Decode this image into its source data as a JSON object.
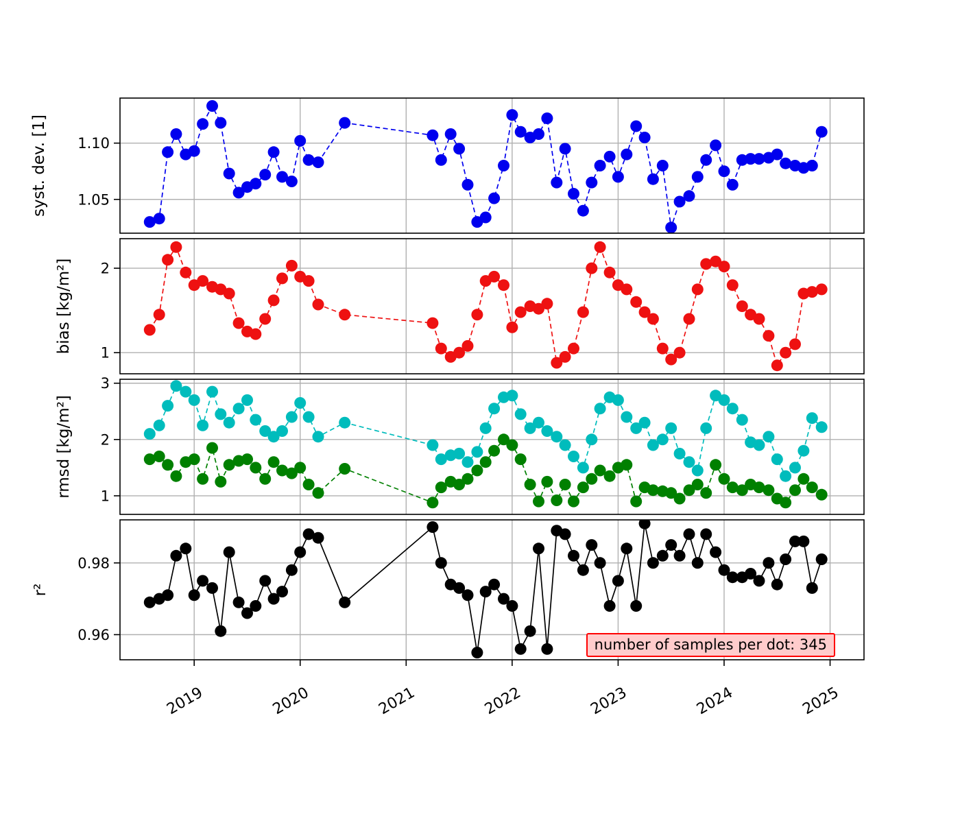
{
  "chart_data": {
    "type": "line",
    "title": "",
    "xlabel": "",
    "grid": true,
    "legend": "none",
    "xlim": [
      2018.3,
      2025.32
    ],
    "x_ticks": [
      2019,
      2020,
      2021,
      2022,
      2023,
      2024,
      2025
    ],
    "x_tick_labels": [
      "2019",
      "2020",
      "2021",
      "2022",
      "2023",
      "2024",
      "2025"
    ],
    "annotation": {
      "text": "number of samples per dot: 345",
      "background": "#ffcccc",
      "border_color": "#ff0000"
    },
    "x": [
      2018.58,
      2018.67,
      2018.75,
      2018.83,
      2018.92,
      2019.0,
      2019.08,
      2019.17,
      2019.25,
      2019.33,
      2019.42,
      2019.5,
      2019.58,
      2019.67,
      2019.75,
      2019.83,
      2019.92,
      2020.0,
      2020.08,
      2020.17,
      2020.42,
      2021.25,
      2021.33,
      2021.42,
      2021.5,
      2021.58,
      2021.67,
      2021.75,
      2021.83,
      2021.92,
      2022.0,
      2022.08,
      2022.17,
      2022.25,
      2022.33,
      2022.42,
      2022.5,
      2022.58,
      2022.67,
      2022.75,
      2022.83,
      2022.92,
      2023.0,
      2023.08,
      2023.17,
      2023.25,
      2023.33,
      2023.42,
      2023.5,
      2023.58,
      2023.67,
      2023.75,
      2023.83,
      2023.92,
      2024.0,
      2024.08,
      2024.17,
      2024.25,
      2024.33,
      2024.42,
      2024.5,
      2024.58,
      2024.67,
      2024.75,
      2024.83,
      2024.92
    ],
    "panels": [
      {
        "id": "syst-dev",
        "ylabel": "syst. dev. [1]",
        "yticks": [
          1.05,
          1.1
        ],
        "ytick_labels": [
          "1.05",
          "1.10"
        ],
        "ylim": [
          1.02,
          1.14
        ],
        "series": [
          {
            "name": "syst-dev",
            "color": "#0000ee",
            "linestyle": "dashed",
            "marker": "o",
            "values": [
              1.03,
              1.033,
              1.092,
              1.108,
              1.09,
              1.093,
              1.117,
              1.133,
              1.118,
              1.073,
              1.056,
              1.061,
              1.064,
              1.072,
              1.092,
              1.07,
              1.066,
              1.102,
              1.085,
              1.083,
              1.118,
              1.107,
              1.085,
              1.108,
              1.095,
              1.063,
              1.03,
              1.034,
              1.051,
              1.08,
              1.125,
              1.11,
              1.105,
              1.108,
              1.122,
              1.065,
              1.095,
              1.055,
              1.04,
              1.065,
              1.08,
              1.088,
              1.07,
              1.09,
              1.115,
              1.105,
              1.068,
              1.08,
              1.025,
              1.048,
              1.053,
              1.07,
              1.085,
              1.098,
              1.075,
              1.063,
              1.085,
              1.086,
              1.086,
              1.087,
              1.09,
              1.082,
              1.08,
              1.078,
              1.08,
              1.11
            ]
          }
        ]
      },
      {
        "id": "bias",
        "ylabel": "bias [kg/m²]",
        "yticks": [
          1,
          2
        ],
        "ytick_labels": [
          "1",
          "2"
        ],
        "ylim": [
          0.75,
          2.35
        ],
        "series": [
          {
            "name": "bias",
            "color": "#ee1111",
            "linestyle": "dashed",
            "marker": "o",
            "values": [
              1.27,
              1.45,
              2.1,
              2.25,
              1.95,
              1.8,
              1.85,
              1.78,
              1.75,
              1.7,
              1.35,
              1.25,
              1.22,
              1.4,
              1.62,
              1.88,
              2.03,
              1.9,
              1.85,
              1.57,
              1.45,
              1.35,
              1.05,
              0.95,
              1.0,
              1.08,
              1.45,
              1.85,
              1.9,
              1.8,
              1.3,
              1.48,
              1.55,
              1.52,
              1.58,
              0.88,
              0.95,
              1.05,
              1.48,
              2.0,
              2.25,
              1.95,
              1.8,
              1.75,
              1.6,
              1.48,
              1.4,
              1.05,
              0.92,
              1.0,
              1.4,
              1.75,
              2.05,
              2.08,
              2.02,
              1.8,
              1.55,
              1.45,
              1.4,
              1.2,
              0.85,
              1.0,
              1.1,
              1.7,
              1.72,
              1.75
            ]
          }
        ]
      },
      {
        "id": "rmsd",
        "ylabel": "rmsd [kg/m²]",
        "yticks": [
          1,
          2,
          3
        ],
        "ytick_labels": [
          "1",
          "2",
          "3"
        ],
        "ylim": [
          0.67,
          3.07
        ],
        "series": [
          {
            "name": "rmsd-total",
            "color": "#00bcbc",
            "linestyle": "dashed",
            "marker": "o",
            "values": [
              2.1,
              2.25,
              2.6,
              2.95,
              2.85,
              2.7,
              2.25,
              2.85,
              2.45,
              2.3,
              2.55,
              2.7,
              2.35,
              2.15,
              2.05,
              2.15,
              2.4,
              2.65,
              2.4,
              2.05,
              2.3,
              1.9,
              1.65,
              1.72,
              1.75,
              1.6,
              1.78,
              2.2,
              2.55,
              2.75,
              2.78,
              2.45,
              2.2,
              2.3,
              2.15,
              2.05,
              1.9,
              1.7,
              1.5,
              2.0,
              2.55,
              2.75,
              2.7,
              2.4,
              2.2,
              2.3,
              1.9,
              2.0,
              2.2,
              1.75,
              1.6,
              1.45,
              2.2,
              2.78,
              2.7,
              2.55,
              2.35,
              1.95,
              1.9,
              2.05,
              1.65,
              1.35,
              1.5,
              1.8,
              2.38,
              2.22
            ]
          },
          {
            "name": "rmsd-unbiased",
            "color": "#008000",
            "linestyle": "dashed",
            "marker": "o",
            "values": [
              1.65,
              1.7,
              1.55,
              1.35,
              1.6,
              1.65,
              1.3,
              1.85,
              1.25,
              1.55,
              1.62,
              1.65,
              1.5,
              1.3,
              1.6,
              1.45,
              1.4,
              1.5,
              1.2,
              1.05,
              1.48,
              0.88,
              1.15,
              1.25,
              1.2,
              1.3,
              1.45,
              1.6,
              1.8,
              2.0,
              1.9,
              1.65,
              1.2,
              0.9,
              1.25,
              0.92,
              1.2,
              0.9,
              1.15,
              1.3,
              1.45,
              1.35,
              1.5,
              1.55,
              0.9,
              1.15,
              1.1,
              1.08,
              1.05,
              0.95,
              1.1,
              1.2,
              1.05,
              1.55,
              1.3,
              1.15,
              1.1,
              1.2,
              1.15,
              1.1,
              0.95,
              0.88,
              1.1,
              1.3,
              1.15,
              1.02
            ]
          }
        ]
      },
      {
        "id": "r2",
        "ylabel": "r²",
        "yticks": [
          0.96,
          0.98
        ],
        "ytick_labels": [
          "0.96",
          "0.98"
        ],
        "ylim": [
          0.953,
          0.992
        ],
        "series": [
          {
            "name": "r2",
            "color": "#000000",
            "linestyle": "solid",
            "marker": "o",
            "values": [
              0.969,
              0.97,
              0.971,
              0.982,
              0.984,
              0.971,
              0.975,
              0.973,
              0.961,
              0.983,
              0.969,
              0.966,
              0.968,
              0.975,
              0.97,
              0.972,
              0.978,
              0.983,
              0.988,
              0.987,
              0.969,
              0.99,
              0.98,
              0.974,
              0.973,
              0.971,
              0.955,
              0.972,
              0.974,
              0.97,
              0.968,
              0.956,
              0.961,
              0.984,
              0.956,
              0.989,
              0.988,
              0.982,
              0.978,
              0.985,
              0.98,
              0.968,
              0.975,
              0.984,
              0.968,
              0.991,
              0.98,
              0.982,
              0.985,
              0.982,
              0.988,
              0.98,
              0.988,
              0.983,
              0.978,
              0.976,
              0.976,
              0.977,
              0.975,
              0.98,
              0.974,
              0.981,
              0.986,
              0.986,
              0.973,
              0.981
            ]
          }
        ]
      }
    ]
  }
}
